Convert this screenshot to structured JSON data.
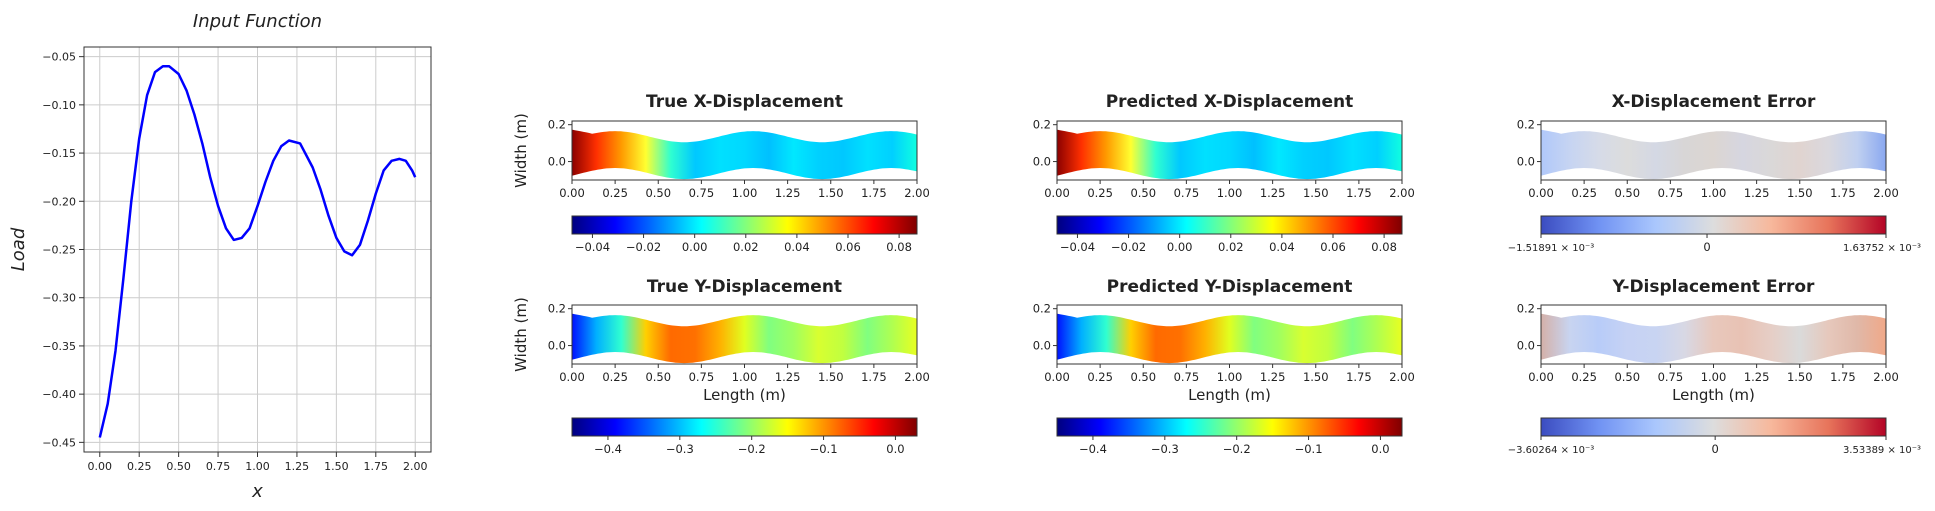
{
  "chart_data": [
    {
      "id": "input",
      "type": "line",
      "title": "Input Function",
      "xlabel": "x",
      "ylabel": "Load",
      "xlim": [
        -0.1,
        2.1
      ],
      "ylim": [
        -0.46,
        -0.04
      ],
      "xticks": [
        "0.00",
        "0.25",
        "0.50",
        "0.75",
        "1.00",
        "1.25",
        "1.50",
        "1.75",
        "2.00"
      ],
      "yticks": [
        "-0.45",
        "-0.40",
        "-0.35",
        "-0.30",
        "-0.25",
        "-0.20",
        "-0.15",
        "-0.10",
        "-0.05"
      ],
      "grid": true,
      "series": [
        {
          "color": "#0000ff",
          "x": [
            0.0,
            0.05,
            0.1,
            0.15,
            0.2,
            0.25,
            0.3,
            0.35,
            0.4,
            0.44,
            0.5,
            0.55,
            0.6,
            0.65,
            0.7,
            0.75,
            0.8,
            0.85,
            0.9,
            0.95,
            1.0,
            1.05,
            1.1,
            1.15,
            1.2,
            1.27,
            1.35,
            1.4,
            1.45,
            1.5,
            1.55,
            1.6,
            1.65,
            1.7,
            1.75,
            1.8,
            1.85,
            1.9,
            1.94,
            1.98,
            2.0
          ],
          "y": [
            -0.445,
            -0.41,
            -0.355,
            -0.28,
            -0.2,
            -0.135,
            -0.09,
            -0.066,
            -0.06,
            -0.06,
            -0.068,
            -0.085,
            -0.11,
            -0.14,
            -0.175,
            -0.205,
            -0.228,
            -0.24,
            -0.238,
            -0.228,
            -0.205,
            -0.18,
            -0.158,
            -0.143,
            -0.137,
            -0.14,
            -0.165,
            -0.188,
            -0.215,
            -0.238,
            -0.252,
            -0.256,
            -0.245,
            -0.22,
            -0.192,
            -0.168,
            -0.158,
            -0.156,
            -0.158,
            -0.168,
            -0.175
          ]
        }
      ]
    },
    {
      "id": "true_x",
      "type": "heatmap",
      "title": "True X-Displacement",
      "ylabel": "Width (m)",
      "xlabel": "",
      "xticks": [
        "0.00",
        "0.25",
        "0.50",
        "0.75",
        "1.00",
        "1.25",
        "1.50",
        "1.75",
        "2.00"
      ],
      "yticks": [
        "0.0",
        "0.2"
      ],
      "colormap": "jet",
      "colorbar": {
        "ticks": [
          "-0.04",
          "-0.02",
          "0.00",
          "0.02",
          "0.04",
          "0.06",
          "0.08"
        ],
        "range": [
          -0.048,
          0.087
        ],
        "tick_values": [
          -0.04,
          -0.02,
          0.0,
          0.02,
          0.04,
          0.06,
          0.08
        ]
      }
    },
    {
      "id": "pred_x",
      "type": "heatmap",
      "title": "Predicted X-Displacement",
      "xlabel": "",
      "ylabel": "",
      "xticks": [
        "0.00",
        "0.25",
        "0.50",
        "0.75",
        "1.00",
        "1.25",
        "1.50",
        "1.75",
        "2.00"
      ],
      "yticks": [
        "0.0",
        "0.2"
      ],
      "colormap": "jet",
      "colorbar": {
        "ticks": [
          "-0.04",
          "-0.02",
          "0.00",
          "0.02",
          "0.04",
          "0.06",
          "0.08"
        ],
        "range": [
          -0.048,
          0.087
        ],
        "tick_values": [
          -0.04,
          -0.02,
          0.0,
          0.02,
          0.04,
          0.06,
          0.08
        ]
      }
    },
    {
      "id": "err_x",
      "type": "heatmap",
      "title": "X-Displacement Error",
      "xlabel": "",
      "ylabel": "",
      "xticks": [
        "0.00",
        "0.25",
        "0.50",
        "0.75",
        "1.00",
        "1.25",
        "1.50",
        "1.75",
        "2.00"
      ],
      "yticks": [
        "0.0",
        "0.2"
      ],
      "colormap": "coolwarm",
      "colorbar": {
        "ticks": [
          "−1.51891 × 10⁻³",
          "0",
          "1.63752 × 10⁻³"
        ],
        "range": [
          -0.00151891,
          0.00163752
        ],
        "tick_values": [
          -0.00151891,
          0,
          0.00163752
        ]
      }
    },
    {
      "id": "true_y",
      "type": "heatmap",
      "title": "True Y-Displacement",
      "ylabel": "Width (m)",
      "xlabel": "Length (m)",
      "xticks": [
        "0.00",
        "0.25",
        "0.50",
        "0.75",
        "1.00",
        "1.25",
        "1.50",
        "1.75",
        "2.00"
      ],
      "yticks": [
        "0.0",
        "0.2"
      ],
      "colormap": "jet",
      "colorbar": {
        "ticks": [
          "-0.4",
          "-0.3",
          "-0.2",
          "-0.1",
          "0.0"
        ],
        "range": [
          -0.45,
          0.03
        ],
        "tick_values": [
          -0.4,
          -0.3,
          -0.2,
          -0.1,
          0.0
        ]
      }
    },
    {
      "id": "pred_y",
      "type": "heatmap",
      "title": "Predicted Y-Displacement",
      "ylabel": "",
      "xlabel": "Length (m)",
      "xticks": [
        "0.00",
        "0.25",
        "0.50",
        "0.75",
        "1.00",
        "1.25",
        "1.50",
        "1.75",
        "2.00"
      ],
      "yticks": [
        "0.0",
        "0.2"
      ],
      "colormap": "jet",
      "colorbar": {
        "ticks": [
          "-0.4",
          "-0.3",
          "-0.2",
          "-0.1",
          "0.0"
        ],
        "range": [
          -0.45,
          0.03
        ],
        "tick_values": [
          -0.4,
          -0.3,
          -0.2,
          -0.1,
          0.0
        ]
      }
    },
    {
      "id": "err_y",
      "type": "heatmap",
      "title": "Y-Displacement Error",
      "ylabel": "",
      "xlabel": "Length (m)",
      "xticks": [
        "0.00",
        "0.25",
        "0.50",
        "0.75",
        "1.00",
        "1.25",
        "1.50",
        "1.75",
        "2.00"
      ],
      "yticks": [
        "0.0",
        "0.2"
      ],
      "colormap": "coolwarm",
      "colorbar": {
        "ticks": [
          "−3.60264 × 10⁻³",
          "0",
          "3.53389 × 10⁻³"
        ],
        "range": [
          -0.00360264,
          0.00353389
        ],
        "tick_values": [
          -0.00360264,
          0,
          0.00353389
        ]
      }
    }
  ]
}
